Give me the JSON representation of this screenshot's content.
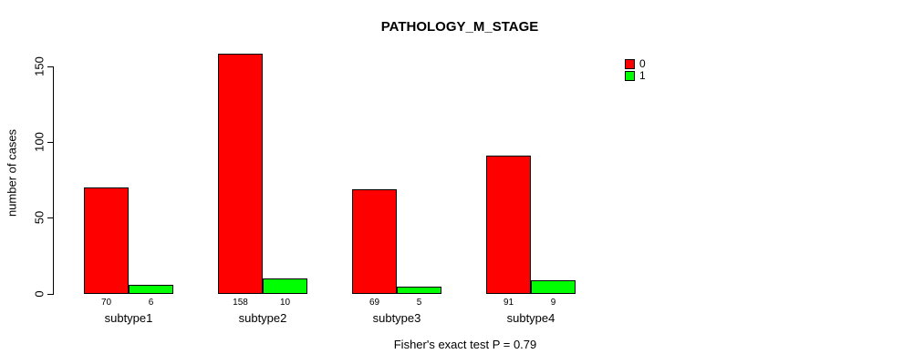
{
  "chart_data": {
    "type": "bar",
    "title": "PATHOLOGY_M_STAGE",
    "ylabel": "number of cases",
    "xlabel": "",
    "footnote": "Fisher's exact test P = 0.79",
    "categories": [
      "subtype1",
      "subtype2",
      "subtype3",
      "subtype4"
    ],
    "series": [
      {
        "name": "0",
        "color": "#ff0000",
        "values": [
          70,
          158,
          69,
          91
        ]
      },
      {
        "name": "1",
        "color": "#00ff00",
        "values": [
          6,
          10,
          5,
          9
        ]
      }
    ],
    "bar_value_labels": [
      [
        "70",
        "158",
        "69",
        "91"
      ],
      [
        "6",
        "10",
        "5",
        "9"
      ]
    ],
    "yticks": [
      0,
      50,
      100,
      150
    ],
    "ylim": [
      0,
      160
    ],
    "grid": false,
    "legend_position": "top-right",
    "axis_color": "#000000",
    "background_color": "#ffffff"
  }
}
